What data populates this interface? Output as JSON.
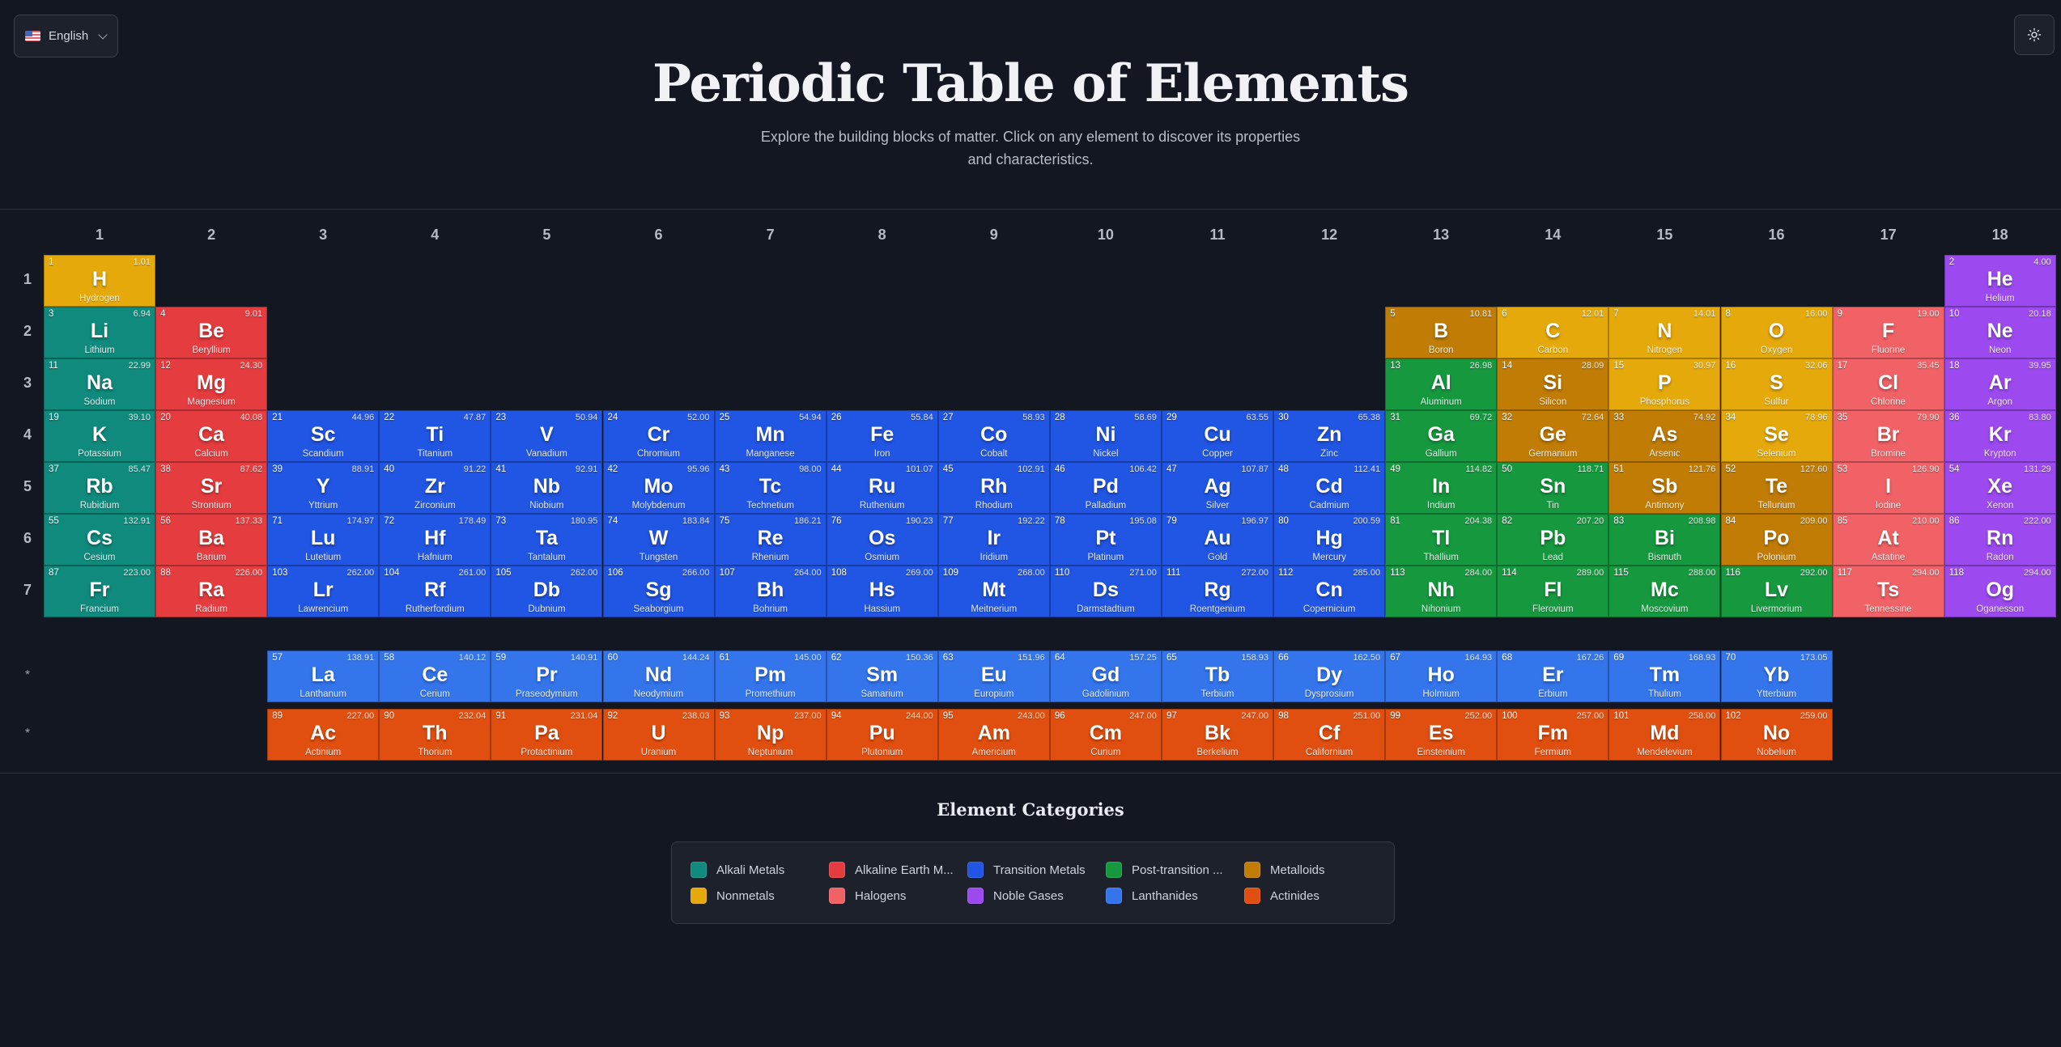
{
  "header": {
    "language": {
      "label": "English",
      "flag": "us-flag-icon"
    },
    "theme_toggle": {
      "icon": "sun-icon"
    },
    "title": "Periodic Table of Elements",
    "subtitle": "Explore the building blocks of matter. Click on any element to discover its properties and characteristics."
  },
  "colors": {
    "alkali": "#0f8a7c",
    "alkaline": "#e53c3f",
    "transition": "#2155e3",
    "post": "#16983f",
    "metalloid": "#c07c05",
    "nonmetal": "#e5a90b",
    "halogen": "#f06265",
    "noble": "#9c4aef",
    "lanthanide": "#3475ec",
    "actinide": "#e14f10"
  },
  "groups": [
    "1",
    "2",
    "3",
    "4",
    "5",
    "6",
    "7",
    "8",
    "9",
    "10",
    "11",
    "12",
    "13",
    "14",
    "15",
    "16",
    "17",
    "18"
  ],
  "periods": [
    "1",
    "2",
    "3",
    "4",
    "5",
    "6",
    "7"
  ],
  "series_markers": [
    "*",
    "*"
  ],
  "elements": [
    {
      "n": "1",
      "s": "H",
      "name": "Hydrogen",
      "m": "1.01",
      "c": "nonmetal",
      "g": 1,
      "p": 1
    },
    {
      "n": "2",
      "s": "He",
      "name": "Helium",
      "m": "4.00",
      "c": "noble",
      "g": 18,
      "p": 1
    },
    {
      "n": "3",
      "s": "Li",
      "name": "Lithium",
      "m": "6.94",
      "c": "alkali",
      "g": 1,
      "p": 2
    },
    {
      "n": "4",
      "s": "Be",
      "name": "Beryllium",
      "m": "9.01",
      "c": "alkaline",
      "g": 2,
      "p": 2
    },
    {
      "n": "5",
      "s": "B",
      "name": "Boron",
      "m": "10.81",
      "c": "metalloid",
      "g": 13,
      "p": 2
    },
    {
      "n": "6",
      "s": "C",
      "name": "Carbon",
      "m": "12.01",
      "c": "nonmetal",
      "g": 14,
      "p": 2
    },
    {
      "n": "7",
      "s": "N",
      "name": "Nitrogen",
      "m": "14.01",
      "c": "nonmetal",
      "g": 15,
      "p": 2
    },
    {
      "n": "8",
      "s": "O",
      "name": "Oxygen",
      "m": "16.00",
      "c": "nonmetal",
      "g": 16,
      "p": 2
    },
    {
      "n": "9",
      "s": "F",
      "name": "Fluorine",
      "m": "19.00",
      "c": "halogen",
      "g": 17,
      "p": 2
    },
    {
      "n": "10",
      "s": "Ne",
      "name": "Neon",
      "m": "20.18",
      "c": "noble",
      "g": 18,
      "p": 2
    },
    {
      "n": "11",
      "s": "Na",
      "name": "Sodium",
      "m": "22.99",
      "c": "alkali",
      "g": 1,
      "p": 3
    },
    {
      "n": "12",
      "s": "Mg",
      "name": "Magnesium",
      "m": "24.30",
      "c": "alkaline",
      "g": 2,
      "p": 3
    },
    {
      "n": "13",
      "s": "Al",
      "name": "Aluminum",
      "m": "26.98",
      "c": "post",
      "g": 13,
      "p": 3
    },
    {
      "n": "14",
      "s": "Si",
      "name": "Silicon",
      "m": "28.09",
      "c": "metalloid",
      "g": 14,
      "p": 3
    },
    {
      "n": "15",
      "s": "P",
      "name": "Phosphorus",
      "m": "30.97",
      "c": "nonmetal",
      "g": 15,
      "p": 3
    },
    {
      "n": "16",
      "s": "S",
      "name": "Sulfur",
      "m": "32.06",
      "c": "nonmetal",
      "g": 16,
      "p": 3
    },
    {
      "n": "17",
      "s": "Cl",
      "name": "Chlorine",
      "m": "35.45",
      "c": "halogen",
      "g": 17,
      "p": 3
    },
    {
      "n": "18",
      "s": "Ar",
      "name": "Argon",
      "m": "39.95",
      "c": "noble",
      "g": 18,
      "p": 3
    },
    {
      "n": "19",
      "s": "K",
      "name": "Potassium",
      "m": "39.10",
      "c": "alkali",
      "g": 1,
      "p": 4
    },
    {
      "n": "20",
      "s": "Ca",
      "name": "Calcium",
      "m": "40.08",
      "c": "alkaline",
      "g": 2,
      "p": 4
    },
    {
      "n": "21",
      "s": "Sc",
      "name": "Scandium",
      "m": "44.96",
      "c": "transition",
      "g": 3,
      "p": 4
    },
    {
      "n": "22",
      "s": "Ti",
      "name": "Titanium",
      "m": "47.87",
      "c": "transition",
      "g": 4,
      "p": 4
    },
    {
      "n": "23",
      "s": "V",
      "name": "Vanadium",
      "m": "50.94",
      "c": "transition",
      "g": 5,
      "p": 4
    },
    {
      "n": "24",
      "s": "Cr",
      "name": "Chromium",
      "m": "52.00",
      "c": "transition",
      "g": 6,
      "p": 4
    },
    {
      "n": "25",
      "s": "Mn",
      "name": "Manganese",
      "m": "54.94",
      "c": "transition",
      "g": 7,
      "p": 4
    },
    {
      "n": "26",
      "s": "Fe",
      "name": "Iron",
      "m": "55.84",
      "c": "transition",
      "g": 8,
      "p": 4
    },
    {
      "n": "27",
      "s": "Co",
      "name": "Cobalt",
      "m": "58.93",
      "c": "transition",
      "g": 9,
      "p": 4
    },
    {
      "n": "28",
      "s": "Ni",
      "name": "Nickel",
      "m": "58.69",
      "c": "transition",
      "g": 10,
      "p": 4
    },
    {
      "n": "29",
      "s": "Cu",
      "name": "Copper",
      "m": "63.55",
      "c": "transition",
      "g": 11,
      "p": 4
    },
    {
      "n": "30",
      "s": "Zn",
      "name": "Zinc",
      "m": "65.38",
      "c": "transition",
      "g": 12,
      "p": 4
    },
    {
      "n": "31",
      "s": "Ga",
      "name": "Gallium",
      "m": "69.72",
      "c": "post",
      "g": 13,
      "p": 4
    },
    {
      "n": "32",
      "s": "Ge",
      "name": "Germanium",
      "m": "72.64",
      "c": "metalloid",
      "g": 14,
      "p": 4
    },
    {
      "n": "33",
      "s": "As",
      "name": "Arsenic",
      "m": "74.92",
      "c": "metalloid",
      "g": 15,
      "p": 4
    },
    {
      "n": "34",
      "s": "Se",
      "name": "Selenium",
      "m": "78.96",
      "c": "nonmetal",
      "g": 16,
      "p": 4
    },
    {
      "n": "35",
      "s": "Br",
      "name": "Bromine",
      "m": "79.90",
      "c": "halogen",
      "g": 17,
      "p": 4
    },
    {
      "n": "36",
      "s": "Kr",
      "name": "Krypton",
      "m": "83.80",
      "c": "noble",
      "g": 18,
      "p": 4
    },
    {
      "n": "37",
      "s": "Rb",
      "name": "Rubidium",
      "m": "85.47",
      "c": "alkali",
      "g": 1,
      "p": 5
    },
    {
      "n": "38",
      "s": "Sr",
      "name": "Strontium",
      "m": "87.62",
      "c": "alkaline",
      "g": 2,
      "p": 5
    },
    {
      "n": "39",
      "s": "Y",
      "name": "Yttrium",
      "m": "88.91",
      "c": "transition",
      "g": 3,
      "p": 5
    },
    {
      "n": "40",
      "s": "Zr",
      "name": "Zirconium",
      "m": "91.22",
      "c": "transition",
      "g": 4,
      "p": 5
    },
    {
      "n": "41",
      "s": "Nb",
      "name": "Niobium",
      "m": "92.91",
      "c": "transition",
      "g": 5,
      "p": 5
    },
    {
      "n": "42",
      "s": "Mo",
      "name": "Molybdenum",
      "m": "95.96",
      "c": "transition",
      "g": 6,
      "p": 5
    },
    {
      "n": "43",
      "s": "Tc",
      "name": "Technetium",
      "m": "98.00",
      "c": "transition",
      "g": 7,
      "p": 5
    },
    {
      "n": "44",
      "s": "Ru",
      "name": "Ruthenium",
      "m": "101.07",
      "c": "transition",
      "g": 8,
      "p": 5
    },
    {
      "n": "45",
      "s": "Rh",
      "name": "Rhodium",
      "m": "102.91",
      "c": "transition",
      "g": 9,
      "p": 5
    },
    {
      "n": "46",
      "s": "Pd",
      "name": "Palladium",
      "m": "106.42",
      "c": "transition",
      "g": 10,
      "p": 5
    },
    {
      "n": "47",
      "s": "Ag",
      "name": "Silver",
      "m": "107.87",
      "c": "transition",
      "g": 11,
      "p": 5
    },
    {
      "n": "48",
      "s": "Cd",
      "name": "Cadmium",
      "m": "112.41",
      "c": "transition",
      "g": 12,
      "p": 5
    },
    {
      "n": "49",
      "s": "In",
      "name": "Indium",
      "m": "114.82",
      "c": "post",
      "g": 13,
      "p": 5
    },
    {
      "n": "50",
      "s": "Sn",
      "name": "Tin",
      "m": "118.71",
      "c": "post",
      "g": 14,
      "p": 5
    },
    {
      "n": "51",
      "s": "Sb",
      "name": "Antimony",
      "m": "121.76",
      "c": "metalloid",
      "g": 15,
      "p": 5
    },
    {
      "n": "52",
      "s": "Te",
      "name": "Tellurium",
      "m": "127.60",
      "c": "metalloid",
      "g": 16,
      "p": 5
    },
    {
      "n": "53",
      "s": "I",
      "name": "Iodine",
      "m": "126.90",
      "c": "halogen",
      "g": 17,
      "p": 5
    },
    {
      "n": "54",
      "s": "Xe",
      "name": "Xenon",
      "m": "131.29",
      "c": "noble",
      "g": 18,
      "p": 5
    },
    {
      "n": "55",
      "s": "Cs",
      "name": "Cesium",
      "m": "132.91",
      "c": "alkali",
      "g": 1,
      "p": 6
    },
    {
      "n": "56",
      "s": "Ba",
      "name": "Barium",
      "m": "137.33",
      "c": "alkaline",
      "g": 2,
      "p": 6
    },
    {
      "n": "71",
      "s": "Lu",
      "name": "Lutetium",
      "m": "174.97",
      "c": "transition",
      "g": 3,
      "p": 6
    },
    {
      "n": "72",
      "s": "Hf",
      "name": "Hafnium",
      "m": "178.49",
      "c": "transition",
      "g": 4,
      "p": 6
    },
    {
      "n": "73",
      "s": "Ta",
      "name": "Tantalum",
      "m": "180.95",
      "c": "transition",
      "g": 5,
      "p": 6
    },
    {
      "n": "74",
      "s": "W",
      "name": "Tungsten",
      "m": "183.84",
      "c": "transition",
      "g": 6,
      "p": 6
    },
    {
      "n": "75",
      "s": "Re",
      "name": "Rhenium",
      "m": "186.21",
      "c": "transition",
      "g": 7,
      "p": 6
    },
    {
      "n": "76",
      "s": "Os",
      "name": "Osmium",
      "m": "190.23",
      "c": "transition",
      "g": 8,
      "p": 6
    },
    {
      "n": "77",
      "s": "Ir",
      "name": "Iridium",
      "m": "192.22",
      "c": "transition",
      "g": 9,
      "p": 6
    },
    {
      "n": "78",
      "s": "Pt",
      "name": "Platinum",
      "m": "195.08",
      "c": "transition",
      "g": 10,
      "p": 6
    },
    {
      "n": "79",
      "s": "Au",
      "name": "Gold",
      "m": "196.97",
      "c": "transition",
      "g": 11,
      "p": 6
    },
    {
      "n": "80",
      "s": "Hg",
      "name": "Mercury",
      "m": "200.59",
      "c": "transition",
      "g": 12,
      "p": 6
    },
    {
      "n": "81",
      "s": "Tl",
      "name": "Thallium",
      "m": "204.38",
      "c": "post",
      "g": 13,
      "p": 6
    },
    {
      "n": "82",
      "s": "Pb",
      "name": "Lead",
      "m": "207.20",
      "c": "post",
      "g": 14,
      "p": 6
    },
    {
      "n": "83",
      "s": "Bi",
      "name": "Bismuth",
      "m": "208.98",
      "c": "post",
      "g": 15,
      "p": 6
    },
    {
      "n": "84",
      "s": "Po",
      "name": "Polonium",
      "m": "209.00",
      "c": "metalloid",
      "g": 16,
      "p": 6
    },
    {
      "n": "85",
      "s": "At",
      "name": "Astatine",
      "m": "210.00",
      "c": "halogen",
      "g": 17,
      "p": 6
    },
    {
      "n": "86",
      "s": "Rn",
      "name": "Radon",
      "m": "222.00",
      "c": "noble",
      "g": 18,
      "p": 6
    },
    {
      "n": "87",
      "s": "Fr",
      "name": "Francium",
      "m": "223.00",
      "c": "alkali",
      "g": 1,
      "p": 7
    },
    {
      "n": "88",
      "s": "Ra",
      "name": "Radium",
      "m": "226.00",
      "c": "alkaline",
      "g": 2,
      "p": 7
    },
    {
      "n": "103",
      "s": "Lr",
      "name": "Lawrencium",
      "m": "262.00",
      "c": "transition",
      "g": 3,
      "p": 7
    },
    {
      "n": "104",
      "s": "Rf",
      "name": "Rutherfordium",
      "m": "261.00",
      "c": "transition",
      "g": 4,
      "p": 7
    },
    {
      "n": "105",
      "s": "Db",
      "name": "Dubnium",
      "m": "262.00",
      "c": "transition",
      "g": 5,
      "p": 7
    },
    {
      "n": "106",
      "s": "Sg",
      "name": "Seaborgium",
      "m": "266.00",
      "c": "transition",
      "g": 6,
      "p": 7
    },
    {
      "n": "107",
      "s": "Bh",
      "name": "Bohrium",
      "m": "264.00",
      "c": "transition",
      "g": 7,
      "p": 7
    },
    {
      "n": "108",
      "s": "Hs",
      "name": "Hassium",
      "m": "269.00",
      "c": "transition",
      "g": 8,
      "p": 7
    },
    {
      "n": "109",
      "s": "Mt",
      "name": "Meitnerium",
      "m": "268.00",
      "c": "transition",
      "g": 9,
      "p": 7
    },
    {
      "n": "110",
      "s": "Ds",
      "name": "Darmstadtium",
      "m": "271.00",
      "c": "transition",
      "g": 10,
      "p": 7
    },
    {
      "n": "111",
      "s": "Rg",
      "name": "Roentgenium",
      "m": "272.00",
      "c": "transition",
      "g": 11,
      "p": 7
    },
    {
      "n": "112",
      "s": "Cn",
      "name": "Copernicium",
      "m": "285.00",
      "c": "transition",
      "g": 12,
      "p": 7
    },
    {
      "n": "113",
      "s": "Nh",
      "name": "Nihonium",
      "m": "284.00",
      "c": "post",
      "g": 13,
      "p": 7
    },
    {
      "n": "114",
      "s": "Fl",
      "name": "Flerovium",
      "m": "289.00",
      "c": "post",
      "g": 14,
      "p": 7
    },
    {
      "n": "115",
      "s": "Mc",
      "name": "Moscovium",
      "m": "288.00",
      "c": "post",
      "g": 15,
      "p": 7
    },
    {
      "n": "116",
      "s": "Lv",
      "name": "Livermorium",
      "m": "292.00",
      "c": "post",
      "g": 16,
      "p": 7
    },
    {
      "n": "117",
      "s": "Ts",
      "name": "Tennessine",
      "m": "294.00",
      "c": "halogen",
      "g": 17,
      "p": 7
    },
    {
      "n": "118",
      "s": "Og",
      "name": "Oganesson",
      "m": "294.00",
      "c": "noble",
      "g": 18,
      "p": 7
    },
    {
      "n": "57",
      "s": "La",
      "name": "Lanthanum",
      "m": "138.91",
      "c": "lanthanide",
      "g": 3,
      "p": 8
    },
    {
      "n": "58",
      "s": "Ce",
      "name": "Cerium",
      "m": "140.12",
      "c": "lanthanide",
      "g": 4,
      "p": 8
    },
    {
      "n": "59",
      "s": "Pr",
      "name": "Praseodymium",
      "m": "140.91",
      "c": "lanthanide",
      "g": 5,
      "p": 8
    },
    {
      "n": "60",
      "s": "Nd",
      "name": "Neodymium",
      "m": "144.24",
      "c": "lanthanide",
      "g": 6,
      "p": 8
    },
    {
      "n": "61",
      "s": "Pm",
      "name": "Promethium",
      "m": "145.00",
      "c": "lanthanide",
      "g": 7,
      "p": 8
    },
    {
      "n": "62",
      "s": "Sm",
      "name": "Samarium",
      "m": "150.36",
      "c": "lanthanide",
      "g": 8,
      "p": 8
    },
    {
      "n": "63",
      "s": "Eu",
      "name": "Europium",
      "m": "151.96",
      "c": "lanthanide",
      "g": 9,
      "p": 8
    },
    {
      "n": "64",
      "s": "Gd",
      "name": "Gadolinium",
      "m": "157.25",
      "c": "lanthanide",
      "g": 10,
      "p": 8
    },
    {
      "n": "65",
      "s": "Tb",
      "name": "Terbium",
      "m": "158.93",
      "c": "lanthanide",
      "g": 11,
      "p": 8
    },
    {
      "n": "66",
      "s": "Dy",
      "name": "Dysprosium",
      "m": "162.50",
      "c": "lanthanide",
      "g": 12,
      "p": 8
    },
    {
      "n": "67",
      "s": "Ho",
      "name": "Holmium",
      "m": "164.93",
      "c": "lanthanide",
      "g": 13,
      "p": 8
    },
    {
      "n": "68",
      "s": "Er",
      "name": "Erbium",
      "m": "167.26",
      "c": "lanthanide",
      "g": 14,
      "p": 8
    },
    {
      "n": "69",
      "s": "Tm",
      "name": "Thulium",
      "m": "168.93",
      "c": "lanthanide",
      "g": 15,
      "p": 8
    },
    {
      "n": "70",
      "s": "Yb",
      "name": "Ytterbium",
      "m": "173.05",
      "c": "lanthanide",
      "g": 16,
      "p": 8
    },
    {
      "n": "89",
      "s": "Ac",
      "name": "Actinium",
      "m": "227.00",
      "c": "actinide",
      "g": 3,
      "p": 9
    },
    {
      "n": "90",
      "s": "Th",
      "name": "Thorium",
      "m": "232.04",
      "c": "actinide",
      "g": 4,
      "p": 9
    },
    {
      "n": "91",
      "s": "Pa",
      "name": "Protactinium",
      "m": "231.04",
      "c": "actinide",
      "g": 5,
      "p": 9
    },
    {
      "n": "92",
      "s": "U",
      "name": "Uranium",
      "m": "238.03",
      "c": "actinide",
      "g": 6,
      "p": 9
    },
    {
      "n": "93",
      "s": "Np",
      "name": "Neptunium",
      "m": "237.00",
      "c": "actinide",
      "g": 7,
      "p": 9
    },
    {
      "n": "94",
      "s": "Pu",
      "name": "Plutonium",
      "m": "244.00",
      "c": "actinide",
      "g": 8,
      "p": 9
    },
    {
      "n": "95",
      "s": "Am",
      "name": "Americium",
      "m": "243.00",
      "c": "actinide",
      "g": 9,
      "p": 9
    },
    {
      "n": "96",
      "s": "Cm",
      "name": "Curium",
      "m": "247.00",
      "c": "actinide",
      "g": 10,
      "p": 9
    },
    {
      "n": "97",
      "s": "Bk",
      "name": "Berkelium",
      "m": "247.00",
      "c": "actinide",
      "g": 11,
      "p": 9
    },
    {
      "n": "98",
      "s": "Cf",
      "name": "Californium",
      "m": "251.00",
      "c": "actinide",
      "g": 12,
      "p": 9
    },
    {
      "n": "99",
      "s": "Es",
      "name": "Einsteinium",
      "m": "252.00",
      "c": "actinide",
      "g": 13,
      "p": 9
    },
    {
      "n": "100",
      "s": "Fm",
      "name": "Fermium",
      "m": "257.00",
      "c": "actinide",
      "g": 14,
      "p": 9
    },
    {
      "n": "101",
      "s": "Md",
      "name": "Mendelevium",
      "m": "258.00",
      "c": "actinide",
      "g": 15,
      "p": 9
    },
    {
      "n": "102",
      "s": "No",
      "name": "Nobelium",
      "m": "259.00",
      "c": "actinide",
      "g": 16,
      "p": 9
    }
  ],
  "legend": {
    "title": "Element Categories",
    "items": [
      {
        "label": "Alkali Metals",
        "c": "alkali"
      },
      {
        "label": "Alkaline Earth M...",
        "c": "alkaline"
      },
      {
        "label": "Transition Metals",
        "c": "transition"
      },
      {
        "label": "Post-transition ...",
        "c": "post"
      },
      {
        "label": "Metalloids",
        "c": "metalloid"
      },
      {
        "label": "Nonmetals",
        "c": "nonmetal"
      },
      {
        "label": "Halogens",
        "c": "halogen"
      },
      {
        "label": "Noble Gases",
        "c": "noble"
      },
      {
        "label": "Lanthanides",
        "c": "lanthanide"
      },
      {
        "label": "Actinides",
        "c": "actinide"
      }
    ]
  }
}
